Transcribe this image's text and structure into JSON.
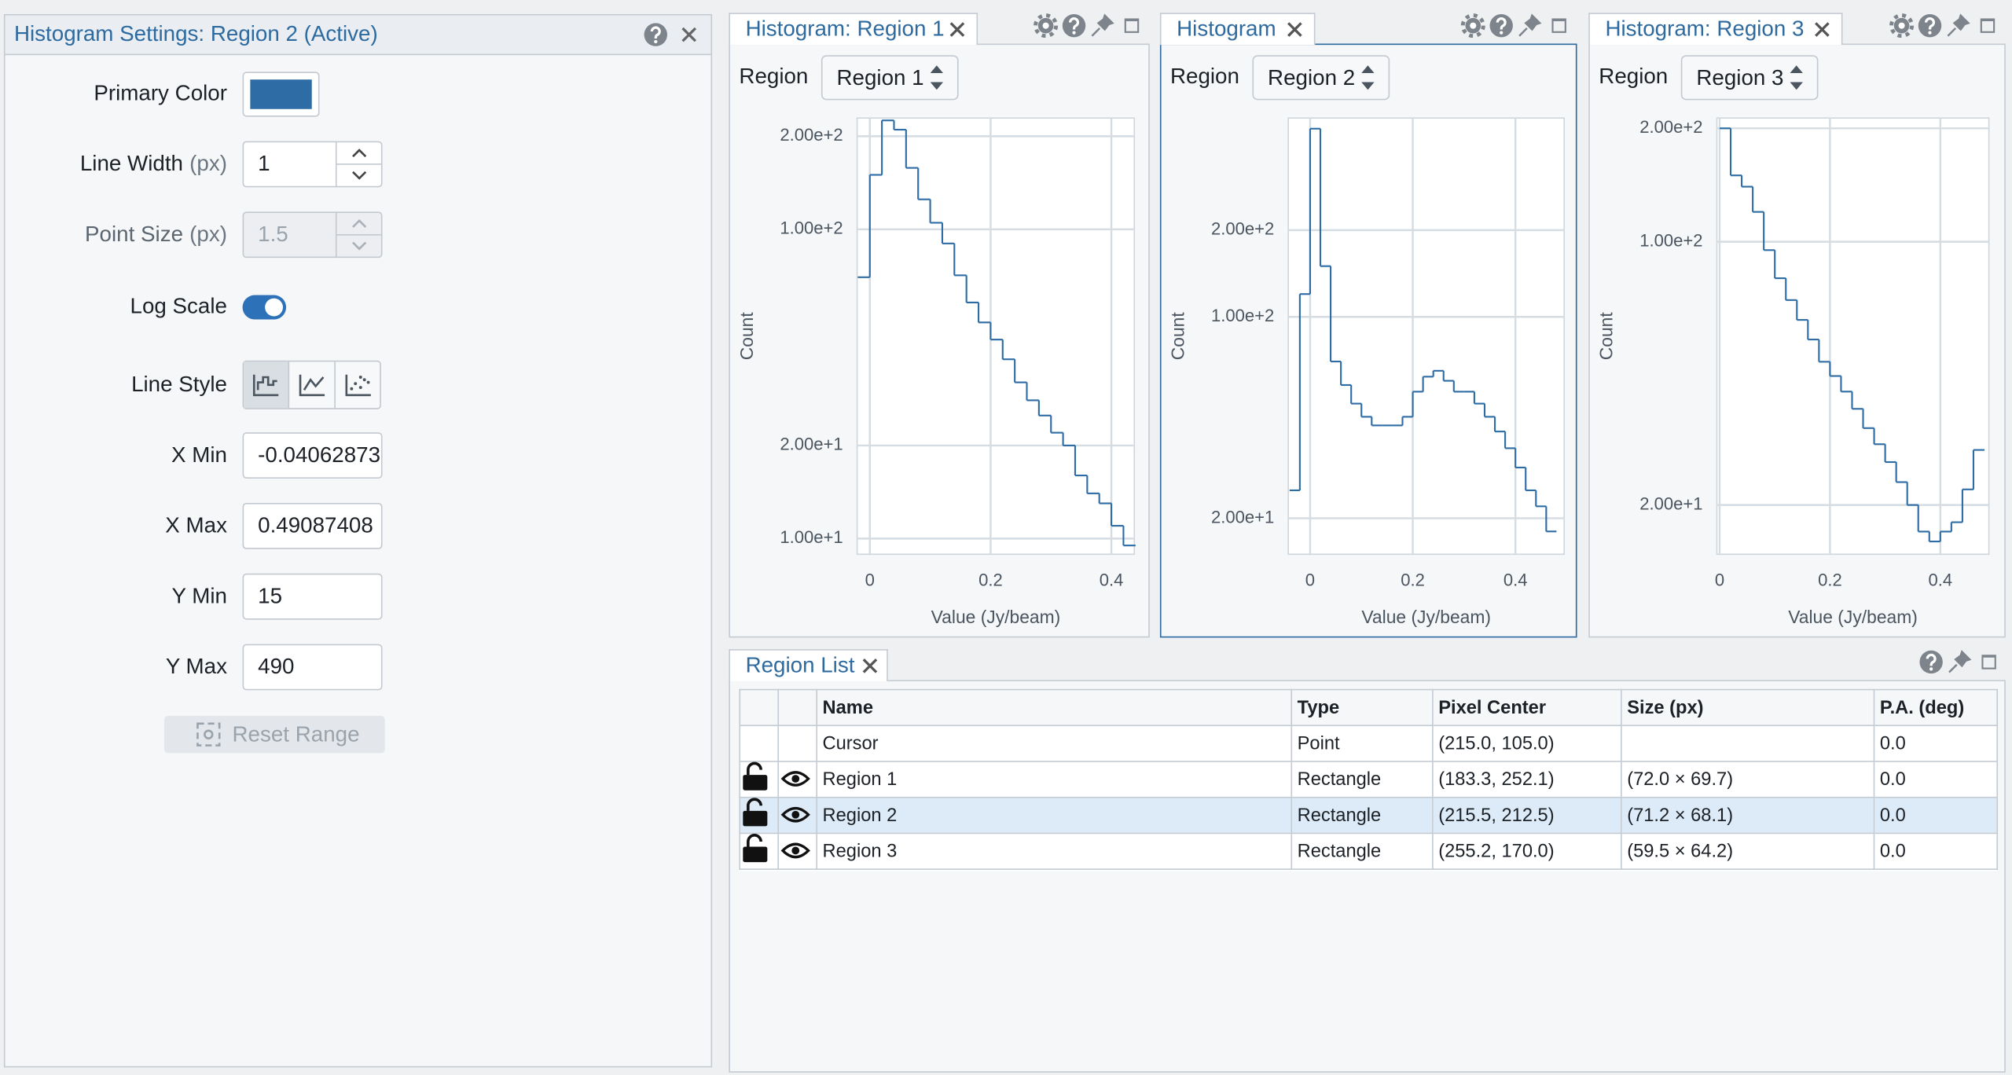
{
  "settings_panel": {
    "title": "Histogram Settings: Region 2 (Active)",
    "primary_color_label": "Primary Color",
    "primary_color": "#2e6ca5",
    "line_width_label": "Line Width",
    "line_width_unit": "(px)",
    "line_width": "1",
    "point_size_label": "Point Size",
    "point_size_unit": "(px)",
    "point_size": "1.5",
    "log_scale_label": "Log Scale",
    "log_scale": true,
    "line_style_label": "Line Style",
    "line_style": "steps",
    "x_min_label": "X Min",
    "x_min": "-0.04062873",
    "x_max_label": "X Max",
    "x_max": "0.49087408",
    "y_min_label": "Y Min",
    "y_min": "15",
    "y_max_label": "Y Max",
    "y_max": "490",
    "reset_button": "Reset Range"
  },
  "chart_data": [
    {
      "type": "histogram",
      "tab": "Histogram: Region 1",
      "region_label": "Region",
      "region": "Region 1",
      "color": "#2e6ca5",
      "log_y": true,
      "grid": true,
      "xlabel": "Value (Jy/beam)",
      "ylabel": "Count",
      "xlim": [
        -0.021,
        0.438
      ],
      "ylim": [
        8.9,
        229
      ],
      "xticks": [
        0,
        0.2,
        0.4
      ],
      "yticks": [
        {
          "value": 10,
          "label": "1.00e+1"
        },
        {
          "value": 20,
          "label": "2.00e+1"
        },
        {
          "value": 100,
          "label": "1.00e+2"
        },
        {
          "value": 200,
          "label": "2.00e+2"
        }
      ],
      "bins": [
        -0.02,
        0,
        0.02,
        0.04,
        0.06,
        0.08,
        0.1,
        0.12,
        0.14,
        0.16,
        0.18,
        0.2,
        0.22,
        0.24,
        0.26,
        0.28,
        0.3,
        0.32,
        0.34,
        0.36,
        0.38,
        0.4,
        0.42,
        0.44
      ],
      "values": [
        70,
        150,
        225,
        210,
        158,
        125,
        105,
        90,
        71,
        58,
        50,
        44,
        38,
        32,
        28,
        25,
        22,
        20,
        16,
        14,
        13,
        11,
        9.5
      ]
    },
    {
      "type": "histogram",
      "tab": "Histogram",
      "region_label": "Region",
      "region": "Region 2",
      "color": "#2e6ca5",
      "log_y": true,
      "grid": true,
      "xlabel": "Value (Jy/beam)",
      "ylabel": "Count",
      "xlim": [
        -0.0425,
        0.495
      ],
      "ylim": [
        15,
        490
      ],
      "xticks": [
        0,
        0.2,
        0.4
      ],
      "yticks": [
        {
          "value": 20,
          "label": "2.00e+1"
        },
        {
          "value": 100,
          "label": "1.00e+2"
        },
        {
          "value": 200,
          "label": "2.00e+2"
        }
      ],
      "bins": [
        -0.04,
        -0.02,
        0,
        0.02,
        0.04,
        0.06,
        0.08,
        0.1,
        0.12,
        0.14,
        0.16,
        0.18,
        0.2,
        0.22,
        0.24,
        0.26,
        0.28,
        0.3,
        0.32,
        0.34,
        0.36,
        0.38,
        0.4,
        0.42,
        0.44,
        0.46,
        0.48
      ],
      "values": [
        25,
        120,
        450,
        150,
        70,
        58,
        50,
        45,
        42,
        42,
        42,
        45,
        55,
        62,
        65,
        60,
        55,
        55,
        50,
        45,
        40,
        35,
        30,
        25,
        22,
        18
      ]
    },
    {
      "type": "histogram",
      "tab": "Histogram: Region 3",
      "region_label": "Region",
      "region": "Region 3",
      "color": "#2e6ca5",
      "log_y": true,
      "grid": true,
      "xlabel": "Value (Jy/beam)",
      "ylabel": "Count",
      "xlim": [
        -0.005,
        0.488
      ],
      "ylim": [
        14.8,
        213
      ],
      "xticks": [
        0,
        0.2,
        0.4
      ],
      "yticks": [
        {
          "value": 20,
          "label": "2.00e+1"
        },
        {
          "value": 100,
          "label": "1.00e+2"
        },
        {
          "value": 200,
          "label": "2.00e+2"
        }
      ],
      "bins": [
        0,
        0.02,
        0.04,
        0.06,
        0.08,
        0.1,
        0.12,
        0.14,
        0.16,
        0.18,
        0.2,
        0.22,
        0.24,
        0.26,
        0.28,
        0.3,
        0.32,
        0.34,
        0.36,
        0.38,
        0.4,
        0.42,
        0.44,
        0.46,
        0.48
      ],
      "values": [
        200,
        150,
        140,
        120,
        95,
        80,
        70,
        62,
        55,
        48,
        44,
        40,
        36,
        32,
        29,
        26,
        23,
        20,
        17,
        16,
        17,
        18,
        22,
        28
      ]
    }
  ],
  "region_list": {
    "tab": "Region List",
    "columns": [
      "Name",
      "Type",
      "Pixel Center",
      "Size (px)",
      "P.A. (deg)"
    ],
    "rows": [
      [
        "Cursor",
        "Point",
        "(215.0, 105.0)",
        null,
        "0.0"
      ],
      [
        "Region 1",
        "Rectangle",
        "(183.3, 252.1)",
        "(72.0 × 69.7)",
        "0.0"
      ],
      [
        "Region 2",
        "Rectangle",
        "(215.5, 212.5)",
        "(71.2 × 68.1)",
        "0.0"
      ],
      [
        "Region 3",
        "Rectangle",
        "(255.2, 170.0)",
        "(59.5 × 64.2)",
        "0.0"
      ]
    ]
  }
}
